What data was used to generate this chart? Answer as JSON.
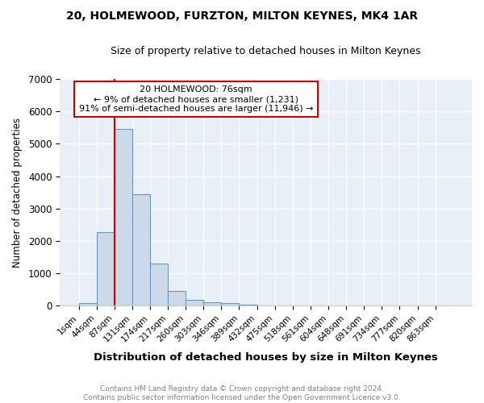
{
  "title": "20, HOLMEWOOD, FURZTON, MILTON KEYNES, MK4 1AR",
  "subtitle": "Size of property relative to detached houses in Milton Keynes",
  "xlabel": "Distribution of detached houses by size in Milton Keynes",
  "ylabel": "Number of detached properties",
  "bar_values": [
    75,
    2275,
    5450,
    3430,
    1300,
    460,
    185,
    95,
    70,
    45,
    0,
    0,
    0,
    0,
    0,
    0,
    0,
    0,
    0,
    0,
    0
  ],
  "bin_labels": [
    "1sqm",
    "44sqm",
    "87sqm",
    "131sqm",
    "174sqm",
    "217sqm",
    "260sqm",
    "303sqm",
    "346sqm",
    "389sqm",
    "432sqm",
    "475sqm",
    "518sqm",
    "561sqm",
    "604sqm",
    "648sqm",
    "691sqm",
    "734sqm",
    "777sqm",
    "820sqm",
    "863sqm"
  ],
  "bar_color": "#ccd9e8",
  "bar_edge_color": "#6699bb",
  "red_line_x": 2.0,
  "annotation_text_line1": "20 HOLMEWOOD: 76sqm",
  "annotation_text_line2": "← 9% of detached houses are smaller (1,231)",
  "annotation_text_line3": "91% of semi-detached houses are larger (11,946) →",
  "annotation_box_facecolor": "#ffffff",
  "annotation_box_edgecolor": "#cc0000",
  "red_line_color": "#cc0000",
  "ylim": [
    0,
    7000
  ],
  "yticks": [
    0,
    1000,
    2000,
    3000,
    4000,
    5000,
    6000,
    7000
  ],
  "footer_line1": "Contains HM Land Registry data © Crown copyright and database right 2024.",
  "footer_line2": "Contains public sector information licensed under the Open Government Licence v3.0.",
  "bg_color": "#ffffff",
  "plot_bg_color": "#e8eff7"
}
